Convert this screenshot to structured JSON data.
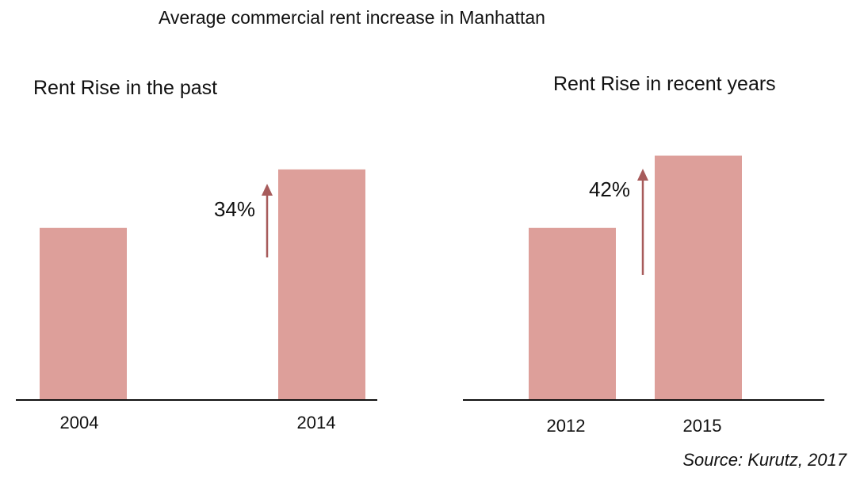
{
  "title": "Average commercial rent increase in Manhattan",
  "source": "Source: Kurutz, 2017",
  "colors": {
    "bar": "#dd9f9a",
    "arrow": "#a75b5b",
    "axis": "#111111",
    "text": "#111111"
  },
  "chart_data": [
    {
      "type": "bar",
      "title": "Rent Rise in the past",
      "categories": [
        "2004",
        "2014"
      ],
      "values": [
        1.0,
        1.34
      ],
      "ylim": [
        0,
        1.45
      ],
      "annotation": {
        "label": "34%",
        "from": "2004",
        "to": "2014"
      },
      "xlabel": "",
      "ylabel": "",
      "grid": false,
      "legend": "none"
    },
    {
      "type": "bar",
      "title": "Rent Rise in recent years",
      "categories": [
        "2012",
        "2015"
      ],
      "values": [
        1.0,
        1.42
      ],
      "ylim": [
        0,
        1.45
      ],
      "annotation": {
        "label": "42%",
        "from": "2012",
        "to": "2015"
      },
      "xlabel": "",
      "ylabel": "",
      "grid": false,
      "legend": "none"
    }
  ]
}
